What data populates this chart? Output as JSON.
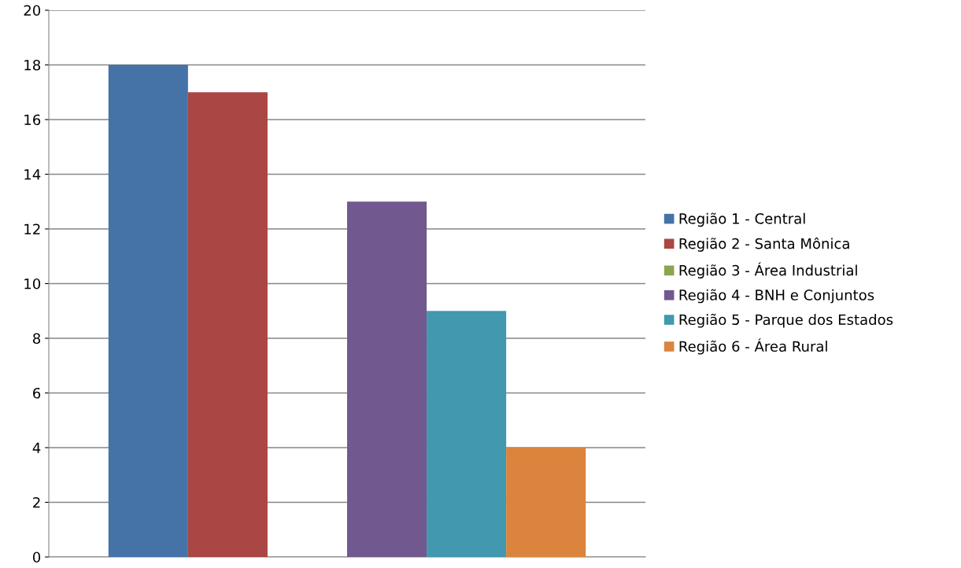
{
  "chart_data": {
    "type": "bar",
    "categories": [
      null
    ],
    "series": [
      {
        "name": "Região 1 - Central",
        "color": "#4572a7",
        "values": [
          18
        ]
      },
      {
        "name": "Região 2 - Santa Mônica",
        "color": "#aa4643",
        "values": [
          17
        ]
      },
      {
        "name": "Região 3 - Área Industrial",
        "color": "#89a54e",
        "values": [
          0
        ]
      },
      {
        "name": "Região 4 - BNH e Conjuntos",
        "color": "#71588f",
        "values": [
          13
        ]
      },
      {
        "name": "Região 5 - Parque dos Estados",
        "color": "#4198af",
        "values": [
          9
        ]
      },
      {
        "name": "Região 6 - Área Rural",
        "color": "#db843d",
        "values": [
          4
        ]
      }
    ],
    "ylim": [
      0,
      20
    ],
    "yticks": [
      0,
      2,
      4,
      6,
      8,
      10,
      12,
      14,
      16,
      18,
      20
    ],
    "grid": "y",
    "legend": "right"
  }
}
